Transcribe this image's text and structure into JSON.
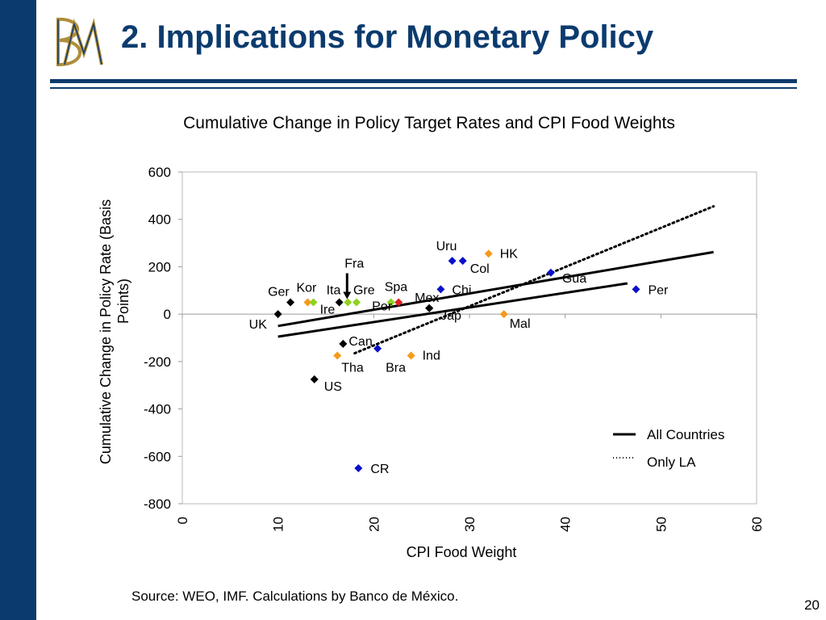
{
  "slide": {
    "title": "2. Implications for Monetary Policy",
    "source": "Source: WEO, IMF. Calculations by Banco de México.",
    "page_number": "20",
    "colors": {
      "navy": "#0b3b6e",
      "gold": "#b08d3a"
    }
  },
  "chart_data": {
    "type": "scatter",
    "title": "Cumulative Change in Policy Target Rates and CPI Food Weights",
    "xlabel": "CPI Food Weight",
    "ylabel": "Cumulative Change in Policy Rate (Basis Points)",
    "xlim": [
      0,
      60
    ],
    "ylim": [
      -800,
      600
    ],
    "xticks": [
      "0",
      "10",
      "20",
      "30",
      "40",
      "50",
      "60"
    ],
    "yticks": [
      "600",
      "400",
      "200",
      "0",
      "-200",
      "-400",
      "-600",
      "-800"
    ],
    "grid": false,
    "legend_position": "bottom-right",
    "points": [
      {
        "label": "Ger",
        "x": 11.3,
        "y": 50,
        "color": "#000000"
      },
      {
        "label": "UK",
        "x": 10.0,
        "y": 0,
        "color": "#000000"
      },
      {
        "label": "Kor",
        "x": 13.1,
        "y": 50,
        "color": "#f59a1b"
      },
      {
        "label": "Ire",
        "x": 13.7,
        "y": 50,
        "color": "#8fd11e"
      },
      {
        "label": "Ita",
        "x": 16.4,
        "y": 50,
        "color": "#000000"
      },
      {
        "label": "Fra",
        "x": 17.3,
        "y": 50,
        "color": "#8fd11e"
      },
      {
        "label": "Gre",
        "x": 18.2,
        "y": 50,
        "color": "#8fd11e"
      },
      {
        "label": "Spa",
        "x": 21.8,
        "y": 50,
        "color": "#8fd11e"
      },
      {
        "label": "Por",
        "x": 22.6,
        "y": 50,
        "color": "#e02020"
      },
      {
        "label": "Mex",
        "x": 25.8,
        "y": 25,
        "color": "#000000"
      },
      {
        "label": "Can",
        "x": 16.8,
        "y": -125,
        "color": "#000000"
      },
      {
        "label": "US",
        "x": 13.8,
        "y": -275,
        "color": "#000000"
      },
      {
        "label": "Tha",
        "x": 16.2,
        "y": -175,
        "color": "#f59a1b"
      },
      {
        "label": "Bra",
        "x": 20.4,
        "y": -145,
        "color": "#0a10c8"
      },
      {
        "label": "Ind",
        "x": 23.9,
        "y": -175,
        "color": "#f59a1b"
      },
      {
        "label": "Uru",
        "x": 28.2,
        "y": 225,
        "color": "#0a10c8"
      },
      {
        "label": "Col",
        "x": 29.3,
        "y": 225,
        "color": "#0a10c8"
      },
      {
        "label": "HK",
        "x": 32.0,
        "y": 255,
        "color": "#f59a1b"
      },
      {
        "label": "Chi",
        "x": 27.0,
        "y": 105,
        "color": "#0a10c8"
      },
      {
        "label": "Jap",
        "x": 25.8,
        "y": 25,
        "color": "#000000"
      },
      {
        "label": "Mal",
        "x": 33.6,
        "y": 0,
        "color": "#f59a1b"
      },
      {
        "label": "Gua",
        "x": 38.5,
        "y": 175,
        "color": "#0a10c8"
      },
      {
        "label": "Per",
        "x": 47.4,
        "y": 105,
        "color": "#0a10c8"
      },
      {
        "label": "CR",
        "x": 18.4,
        "y": -650,
        "color": "#0a10c8"
      }
    ],
    "series": [
      {
        "name": "All Countries",
        "style": "solid",
        "x": [
          10.0,
          55.5
        ],
        "y": [
          -50,
          262
        ]
      },
      {
        "name": "All Countries",
        "style": "solid",
        "x": [
          10.0,
          46.5
        ],
        "y": [
          -95,
          130
        ]
      },
      {
        "name": "Only LA",
        "style": "dotted",
        "x": [
          18.0,
          55.5
        ],
        "y": [
          -165,
          455
        ]
      }
    ],
    "legend": [
      {
        "name": "All Countries",
        "style": "solid"
      },
      {
        "name": "Only LA",
        "style": "dotted"
      }
    ]
  }
}
